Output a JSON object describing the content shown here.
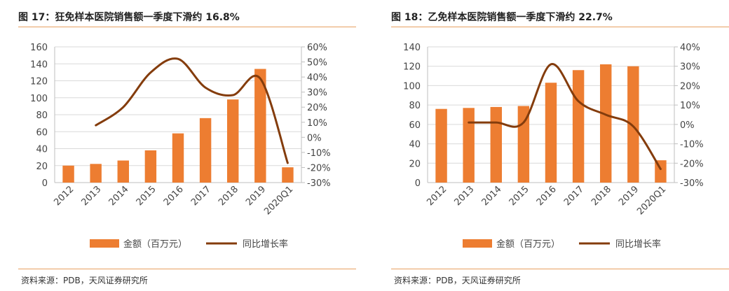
{
  "colors": {
    "bar": "#ED7D31",
    "line": "#843C0C",
    "rule": "#E8A060",
    "grid": "#D9D9D9"
  },
  "figures": [
    {
      "title": "图 17：狂免样本医院销售额一季度下滑约 16.8%",
      "source": "资料来源：PDB，天风证券研究所",
      "chart_data": {
        "type": "bar",
        "categories": [
          "2012",
          "2013",
          "2014",
          "2015",
          "2016",
          "2017",
          "2018",
          "2019",
          "2020Q1"
        ],
        "series": [
          {
            "name": "金额（百万元）",
            "type": "bar",
            "axis": "left",
            "values": [
              20,
              22,
              26,
              38,
              58,
              76,
              98,
              134,
              18
            ]
          },
          {
            "name": "同比增长率",
            "type": "line",
            "axis": "right",
            "values": [
              null,
              8,
              20,
              43,
              52,
              33,
              28,
              39,
              -17
            ]
          }
        ],
        "y_left": {
          "min": 0,
          "max": 160,
          "ticks": [
            "0",
            "20",
            "40",
            "60",
            "80",
            "100",
            "120",
            "140",
            "160"
          ]
        },
        "y_right": {
          "min": -30,
          "max": 60,
          "ticks": [
            "-30%",
            "-20%",
            "-10%",
            "0%",
            "10%",
            "20%",
            "30%",
            "40%",
            "50%",
            "60%"
          ]
        },
        "legend": {
          "position": "bottom",
          "bar_label": "金额（百万元）",
          "line_label": "同比增长率"
        }
      }
    },
    {
      "title": "图 18：乙免样本医院销售额一季度下滑约 22.7%",
      "source": "资料来源：PDB，天风证券研究所",
      "chart_data": {
        "type": "bar",
        "categories": [
          "2012",
          "2013",
          "2014",
          "2015",
          "2016",
          "2017",
          "2018",
          "2019",
          "2020Q1"
        ],
        "series": [
          {
            "name": "金额（百万元）",
            "type": "bar",
            "axis": "left",
            "values": [
              76,
              77,
              78,
              79,
              103,
              116,
              122,
              120,
              23
            ]
          },
          {
            "name": "同比增长率",
            "type": "line",
            "axis": "right",
            "values": [
              null,
              1,
              1,
              1,
              31,
              12,
              5,
              -1,
              -23
            ]
          }
        ],
        "y_left": {
          "min": 0,
          "max": 140,
          "ticks": [
            "0",
            "20",
            "40",
            "60",
            "80",
            "100",
            "120",
            "140"
          ]
        },
        "y_right": {
          "min": -30,
          "max": 40,
          "ticks": [
            "-30%",
            "-20%",
            "-10%",
            "0%",
            "10%",
            "20%",
            "30%",
            "40%"
          ]
        },
        "legend": {
          "position": "bottom",
          "bar_label": "金额（百万元）",
          "line_label": "同比增长率"
        }
      }
    }
  ]
}
